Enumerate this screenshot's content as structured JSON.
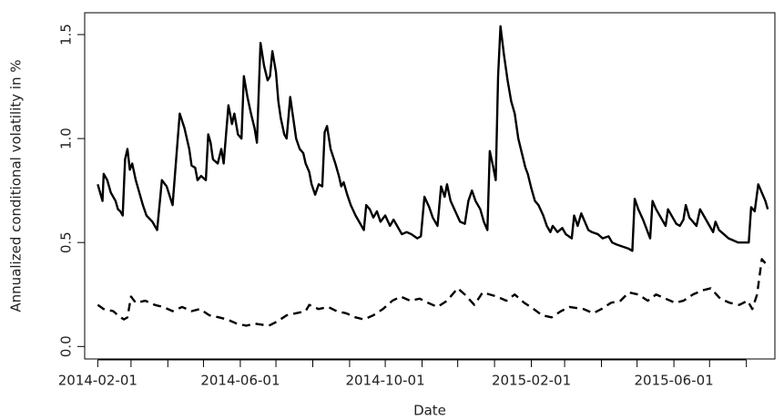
{
  "chart_data": {
    "type": "line",
    "x_label": "Date",
    "y_label": "Annualized conditional volatility in %",
    "xlim": [
      "2014-01-21",
      "2015-08-25"
    ],
    "xticks": [
      "2014-02-01",
      "2014-06-01",
      "2014-10-01",
      "2015-02-01",
      "2015-06-01"
    ],
    "xminorticks": [
      "2014-03-01",
      "2014-04-01",
      "2014-05-01",
      "2014-07-01",
      "2014-08-01",
      "2014-09-01",
      "2014-11-01",
      "2014-12-01",
      "2015-01-01",
      "2015-03-01",
      "2015-04-01",
      "2015-05-01",
      "2015-07-01",
      "2015-08-01"
    ],
    "ylim": [
      -0.06,
      1.605
    ],
    "yticks": [
      {
        "value": 0,
        "label": "0.0"
      },
      0.5,
      {
        "value": 1,
        "label": "1.0"
      },
      1.5
    ],
    "series": [
      {
        "color": "#000000",
        "dash": "solid",
        "x": [
          "2014-02-01",
          "2014-02-05",
          "2014-02-06",
          "2014-02-09",
          "2014-02-12",
          "2014-02-16",
          "2014-02-18",
          "2014-02-20",
          "2014-02-22",
          "2014-02-24",
          "2014-02-26",
          "2014-02-28",
          "2014-03-02",
          "2014-03-05",
          "2014-03-08",
          "2014-03-11",
          "2014-03-14",
          "2014-03-19",
          "2014-03-23",
          "2014-03-27",
          "2014-03-31",
          "2014-04-05",
          "2014-04-08",
          "2014-04-11",
          "2014-04-15",
          "2014-04-19",
          "2014-04-21",
          "2014-04-24",
          "2014-04-26",
          "2014-04-29",
          "2014-05-03",
          "2014-05-05",
          "2014-05-07",
          "2014-05-09",
          "2014-05-13",
          "2014-05-16",
          "2014-05-18",
          "2014-05-22",
          "2014-05-25",
          "2014-05-27",
          "2014-05-30",
          "2014-06-02",
          "2014-06-04",
          "2014-06-07",
          "2014-06-10",
          "2014-06-13",
          "2014-06-15",
          "2014-06-18",
          "2014-06-21",
          "2014-06-24",
          "2014-06-26",
          "2014-06-28",
          "2014-07-01",
          "2014-07-03",
          "2014-07-05",
          "2014-07-08",
          "2014-07-10",
          "2014-07-13",
          "2014-07-15",
          "2014-07-18",
          "2014-07-21",
          "2014-07-24",
          "2014-07-26",
          "2014-07-29",
          "2014-07-31",
          "2014-08-03",
          "2014-08-06",
          "2014-08-09",
          "2014-08-11",
          "2014-08-13",
          "2014-08-16",
          "2014-08-20",
          "2014-08-23",
          "2014-08-25",
          "2014-08-27",
          "2014-08-30",
          "2014-09-02",
          "2014-09-06",
          "2014-09-10",
          "2014-09-13",
          "2014-09-15",
          "2014-09-18",
          "2014-09-21",
          "2014-09-24",
          "2014-09-27",
          "2014-10-01",
          "2014-10-05",
          "2014-10-08",
          "2014-10-12",
          "2014-10-15",
          "2014-10-19",
          "2014-10-23",
          "2014-10-28",
          "2014-10-31",
          "2014-11-03",
          "2014-11-07",
          "2014-11-10",
          "2014-11-14",
          "2014-11-17",
          "2014-11-20",
          "2014-11-22",
          "2014-11-25",
          "2014-11-29",
          "2014-12-03",
          "2014-12-07",
          "2014-12-10",
          "2014-12-13",
          "2014-12-16",
          "2014-12-20",
          "2014-12-23",
          "2014-12-26",
          "2014-12-28",
          "2014-12-31",
          "2015-01-02",
          "2015-01-04",
          "2015-01-06",
          "2015-01-09",
          "2015-01-12",
          "2015-01-15",
          "2015-01-18",
          "2015-01-21",
          "2015-01-24",
          "2015-01-27",
          "2015-01-29",
          "2015-02-01",
          "2015-02-04",
          "2015-02-07",
          "2015-02-11",
          "2015-02-14",
          "2015-02-17",
          "2015-02-19",
          "2015-02-23",
          "2015-02-27",
          "2015-03-02",
          "2015-03-07",
          "2015-03-09",
          "2015-03-12",
          "2015-03-15",
          "2015-03-18",
          "2015-03-21",
          "2015-03-24",
          "2015-03-29",
          "2015-04-02",
          "2015-04-07",
          "2015-04-10",
          "2015-04-14",
          "2015-04-19",
          "2015-04-24",
          "2015-04-27",
          "2015-04-29",
          "2015-05-02",
          "2015-05-06",
          "2015-05-10",
          "2015-05-12",
          "2015-05-14",
          "2015-05-17",
          "2015-05-21",
          "2015-05-25",
          "2015-05-27",
          "2015-05-31",
          "2015-06-03",
          "2015-06-06",
          "2015-06-09",
          "2015-06-11",
          "2015-06-14",
          "2015-06-17",
          "2015-06-20",
          "2015-06-23",
          "2015-06-26",
          "2015-06-29",
          "2015-07-02",
          "2015-07-04",
          "2015-07-06",
          "2015-07-09",
          "2015-07-13",
          "2015-07-17",
          "2015-07-21",
          "2015-07-25",
          "2015-07-29",
          "2015-08-03",
          "2015-08-05",
          "2015-08-08",
          "2015-08-11",
          "2015-08-14",
          "2015-08-17",
          "2015-08-19"
        ],
        "values": [
          0.78,
          0.7,
          0.83,
          0.8,
          0.74,
          0.7,
          0.66,
          0.65,
          0.63,
          0.9,
          0.95,
          0.85,
          0.88,
          0.8,
          0.74,
          0.68,
          0.63,
          0.6,
          0.56,
          0.8,
          0.77,
          0.68,
          0.9,
          1.12,
          1.05,
          0.95,
          0.87,
          0.86,
          0.8,
          0.82,
          0.8,
          1.02,
          0.98,
          0.9,
          0.88,
          0.95,
          0.88,
          1.16,
          1.07,
          1.12,
          1.02,
          1.0,
          1.3,
          1.2,
          1.12,
          1.05,
          0.98,
          1.46,
          1.35,
          1.28,
          1.3,
          1.42,
          1.32,
          1.18,
          1.1,
          1.02,
          1.0,
          1.2,
          1.12,
          1.0,
          0.95,
          0.93,
          0.88,
          0.84,
          0.78,
          0.73,
          0.78,
          0.77,
          1.03,
          1.06,
          0.95,
          0.88,
          0.82,
          0.77,
          0.79,
          0.73,
          0.68,
          0.63,
          0.59,
          0.56,
          0.68,
          0.66,
          0.62,
          0.65,
          0.6,
          0.63,
          0.58,
          0.61,
          0.57,
          0.54,
          0.55,
          0.54,
          0.52,
          0.53,
          0.72,
          0.67,
          0.62,
          0.58,
          0.77,
          0.72,
          0.78,
          0.7,
          0.65,
          0.6,
          0.59,
          0.7,
          0.75,
          0.7,
          0.66,
          0.6,
          0.56,
          0.94,
          0.86,
          0.8,
          1.3,
          1.54,
          1.4,
          1.28,
          1.18,
          1.12,
          1.0,
          0.93,
          0.86,
          0.83,
          0.76,
          0.7,
          0.68,
          0.63,
          0.58,
          0.55,
          0.58,
          0.55,
          0.57,
          0.54,
          0.52,
          0.63,
          0.58,
          0.64,
          0.6,
          0.56,
          0.55,
          0.54,
          0.52,
          0.53,
          0.5,
          0.49,
          0.48,
          0.47,
          0.46,
          0.71,
          0.66,
          0.61,
          0.55,
          0.52,
          0.7,
          0.66,
          0.62,
          0.58,
          0.66,
          0.62,
          0.59,
          0.58,
          0.61,
          0.68,
          0.62,
          0.6,
          0.58,
          0.66,
          0.63,
          0.6,
          0.57,
          0.55,
          0.6,
          0.56,
          0.54,
          0.52,
          0.51,
          0.5,
          0.5,
          0.5,
          0.67,
          0.65,
          0.78,
          0.74,
          0.7,
          0.66
        ]
      },
      {
        "color": "#000000",
        "dash": "dashed",
        "x": [
          "2014-02-01",
          "2014-02-06",
          "2014-02-14",
          "2014-02-18",
          "2014-02-23",
          "2014-02-26",
          "2014-03-01",
          "2014-03-05",
          "2014-03-13",
          "2014-03-21",
          "2014-03-28",
          "2014-04-05",
          "2014-04-13",
          "2014-04-21",
          "2014-04-28",
          "2014-05-06",
          "2014-05-14",
          "2014-05-21",
          "2014-05-29",
          "2014-06-06",
          "2014-06-13",
          "2014-06-25",
          "2014-07-02",
          "2014-07-10",
          "2014-07-18",
          "2014-07-26",
          "2014-07-29",
          "2014-08-06",
          "2014-08-14",
          "2014-08-21",
          "2014-08-29",
          "2014-09-06",
          "2014-09-13",
          "2014-09-21",
          "2014-09-29",
          "2014-10-07",
          "2014-10-14",
          "2014-10-22",
          "2014-10-30",
          "2014-11-06",
          "2014-11-14",
          "2014-11-22",
          "2014-12-01",
          "2014-12-07",
          "2014-12-15",
          "2014-12-22",
          "2015-01-03",
          "2015-01-11",
          "2015-01-18",
          "2015-01-26",
          "2015-02-03",
          "2015-02-10",
          "2015-02-18",
          "2015-02-26",
          "2015-03-05",
          "2015-03-17",
          "2015-03-25",
          "2015-04-01",
          "2015-04-09",
          "2015-04-17",
          "2015-04-24",
          "2015-05-02",
          "2015-05-10",
          "2015-05-17",
          "2015-05-25",
          "2015-06-02",
          "2015-06-09",
          "2015-06-17",
          "2015-06-25",
          "2015-07-02",
          "2015-07-10",
          "2015-07-18",
          "2015-07-26",
          "2015-08-02",
          "2015-08-06",
          "2015-08-10",
          "2015-08-14",
          "2015-08-20"
        ],
        "values": [
          0.2,
          0.18,
          0.17,
          0.15,
          0.13,
          0.14,
          0.24,
          0.21,
          0.22,
          0.2,
          0.19,
          0.17,
          0.19,
          0.17,
          0.18,
          0.15,
          0.14,
          0.13,
          0.11,
          0.1,
          0.11,
          0.1,
          0.12,
          0.15,
          0.16,
          0.17,
          0.2,
          0.18,
          0.19,
          0.17,
          0.16,
          0.14,
          0.13,
          0.15,
          0.18,
          0.22,
          0.24,
          0.22,
          0.23,
          0.21,
          0.19,
          0.22,
          0.28,
          0.25,
          0.2,
          0.26,
          0.24,
          0.22,
          0.25,
          0.21,
          0.18,
          0.15,
          0.14,
          0.17,
          0.19,
          0.18,
          0.16,
          0.18,
          0.21,
          0.22,
          0.26,
          0.25,
          0.22,
          0.25,
          0.23,
          0.21,
          0.22,
          0.25,
          0.27,
          0.28,
          0.23,
          0.21,
          0.2,
          0.22,
          0.18,
          0.25,
          0.42,
          0.38
        ]
      }
    ]
  }
}
